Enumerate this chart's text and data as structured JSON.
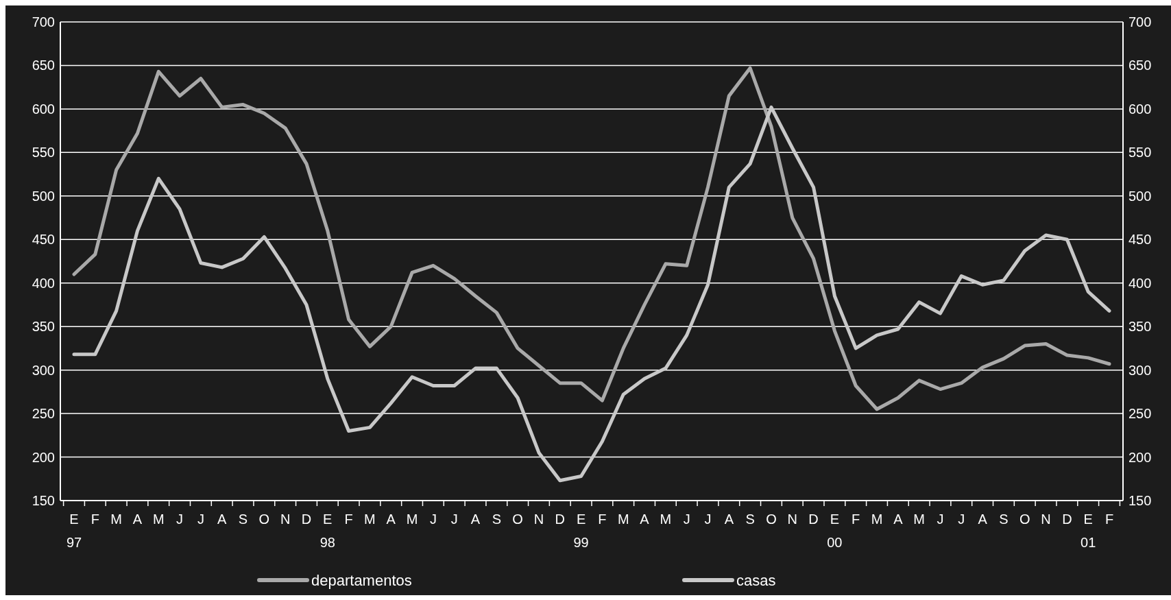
{
  "chart_data": {
    "type": "line",
    "categories": [
      "E\n97",
      "F",
      "M",
      "A",
      "M",
      "J",
      "J",
      "A",
      "S",
      "O",
      "N",
      "D",
      "E\n98",
      "F",
      "M",
      "A",
      "M",
      "J",
      "J",
      "A",
      "S",
      "O",
      "N",
      "D",
      "E\n99",
      "F",
      "M",
      "A",
      "M",
      "J",
      "J",
      "A",
      "S",
      "O",
      "N",
      "D",
      "E\n00",
      "F",
      "M",
      "A",
      "M",
      "J",
      "J",
      "A",
      "S",
      "O",
      "N",
      "D",
      "E\n01",
      "F"
    ],
    "series": [
      {
        "name": "departamentos",
        "color": "#a9a9a9",
        "values": [
          410,
          433,
          530,
          572,
          643,
          615,
          635,
          602,
          605,
          595,
          578,
          537,
          460,
          358,
          327,
          350,
          412,
          420,
          405,
          385,
          366,
          325,
          305,
          285,
          285,
          265,
          325,
          375,
          422,
          420,
          510,
          615,
          647,
          580,
          475,
          428,
          345,
          282,
          255,
          268,
          288,
          278,
          285,
          303,
          313,
          328,
          330,
          317,
          314,
          307
        ]
      },
      {
        "name": "casas",
        "color": "#c8c8c8",
        "values": [
          318,
          318,
          368,
          460,
          520,
          485,
          423,
          418,
          428,
          453,
          417,
          375,
          290,
          230,
          234,
          262,
          292,
          282,
          282,
          302,
          302,
          268,
          205,
          173,
          178,
          218,
          272,
          290,
          302,
          340,
          398,
          510,
          537,
          602,
          555,
          510,
          385,
          325,
          340,
          347,
          378,
          365,
          408,
          398,
          403,
          437,
          455,
          450,
          390,
          368
        ]
      }
    ],
    "ylim": [
      150,
      700
    ],
    "yticks": [
      150,
      200,
      250,
      300,
      350,
      400,
      450,
      500,
      550,
      600,
      650,
      700
    ],
    "y2lim": [
      150,
      700
    ],
    "y2ticks": [
      150,
      200,
      250,
      300,
      350,
      400,
      450,
      500,
      550,
      600,
      650,
      700
    ],
    "grid": "y",
    "legend": "bottom",
    "marker": "none",
    "line_style": "solid"
  }
}
